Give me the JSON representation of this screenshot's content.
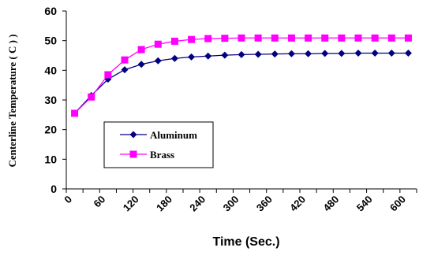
{
  "chart_data": {
    "type": "line",
    "xlabel": "Time (Sec.)",
    "ylabel": "Centerline Temperature ( C ) )",
    "ylim": [
      0,
      60
    ],
    "yticks": [
      "0",
      "10",
      "20",
      "30",
      "40",
      "50",
      "60"
    ],
    "xticks": [
      "0",
      "60",
      "120",
      "180",
      "240",
      "300",
      "360",
      "420",
      "480",
      "540",
      "600"
    ],
    "xlim": [
      0,
      630
    ],
    "grid": false,
    "legend_position": "lower-left",
    "x": [
      15,
      45,
      75,
      105,
      135,
      165,
      195,
      225,
      255,
      285,
      315,
      345,
      375,
      405,
      435,
      465,
      495,
      525,
      555,
      585,
      615
    ],
    "series": [
      {
        "name": "Aluminum",
        "color": "#000080",
        "marker": "diamond",
        "values": [
          25.5,
          31.5,
          37.0,
          40.2,
          42.0,
          43.2,
          44.0,
          44.5,
          44.8,
          45.1,
          45.3,
          45.4,
          45.5,
          45.6,
          45.6,
          45.7,
          45.7,
          45.8,
          45.8,
          45.8,
          45.8
        ]
      },
      {
        "name": "Brass",
        "color": "#ff00ff",
        "marker": "square",
        "values": [
          25.5,
          31.0,
          38.5,
          43.5,
          47.0,
          48.8,
          49.8,
          50.4,
          50.7,
          50.8,
          50.9,
          50.9,
          50.9,
          50.9,
          50.9,
          50.9,
          50.9,
          50.9,
          50.9,
          50.9,
          50.9
        ]
      }
    ]
  }
}
